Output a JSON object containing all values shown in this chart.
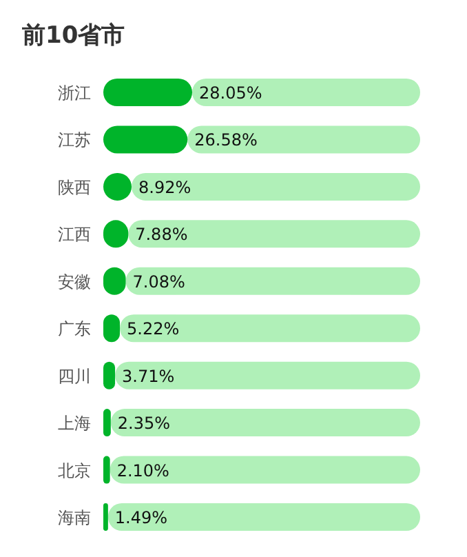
{
  "chart_data": {
    "type": "bar",
    "orientation": "horizontal",
    "stacked": true,
    "title": "前10省市",
    "categories": [
      "浙江",
      "江苏",
      "陕西",
      "江西",
      "安徽",
      "广东",
      "四川",
      "上海",
      "北京",
      "海南"
    ],
    "series": [
      {
        "color": "#00b42a",
        "values": [
          28.05,
          26.58,
          8.92,
          7.88,
          7.08,
          5.22,
          3.71,
          2.35,
          2.1,
          1.49
        ],
        "value_labels": [
          "28.05%",
          "26.58%",
          "8.92%",
          "7.88%",
          "7.08%",
          "5.22%",
          "3.71%",
          "2.35%",
          "2.10%",
          "1.49%"
        ]
      },
      {
        "color": "#b0f0b8",
        "values": [
          71.95,
          73.42,
          91.08,
          92.12,
          92.92,
          94.78,
          96.29,
          97.65,
          97.9,
          98.51
        ]
      }
    ],
    "xlim": [
      0,
      100
    ],
    "tick_labels": "y"
  }
}
